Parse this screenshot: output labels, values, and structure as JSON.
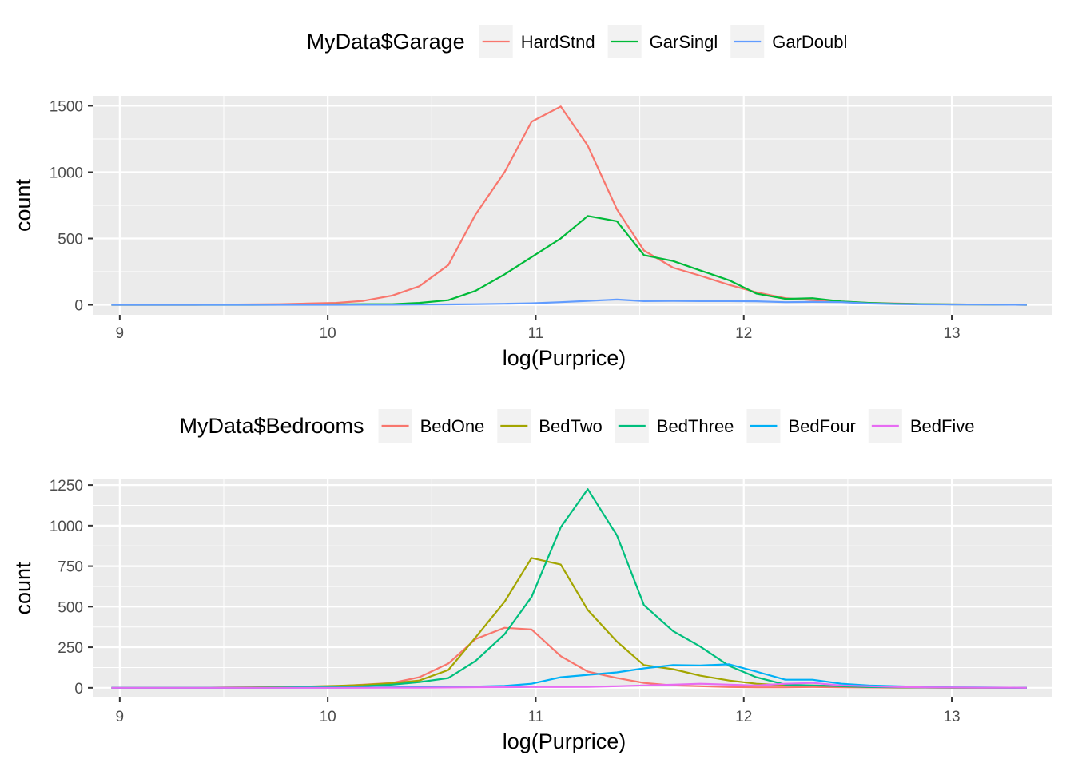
{
  "chart_data": [
    {
      "type": "line",
      "title": "",
      "xlabel": "log(Purprice)",
      "ylabel": "count",
      "xlim": [
        8.87,
        13.48
      ],
      "ylim": [
        -75,
        1575
      ],
      "xticks": [
        9,
        10,
        11,
        12,
        13
      ],
      "yticks": [
        0,
        500,
        1000,
        1500
      ],
      "grid": true,
      "legend": {
        "title": "MyData$Garage",
        "placement": "top"
      },
      "x": [
        8.96,
        9.09,
        9.23,
        9.36,
        9.5,
        9.63,
        9.77,
        9.9,
        10.04,
        10.17,
        10.31,
        10.44,
        10.58,
        10.71,
        10.85,
        10.98,
        11.12,
        11.25,
        11.39,
        11.52,
        11.66,
        11.79,
        11.93,
        12.06,
        12.2,
        12.33,
        12.47,
        12.6,
        12.74,
        12.87,
        13.01,
        13.14,
        13.28,
        13.36
      ],
      "series": [
        {
          "name": "HardStnd",
          "color": "#F8766D",
          "values": [
            0,
            0,
            0,
            0,
            2,
            3,
            5,
            10,
            15,
            30,
            70,
            140,
            300,
            680,
            1000,
            1380,
            1495,
            1200,
            720,
            410,
            280,
            220,
            150,
            95,
            50,
            35,
            25,
            15,
            10,
            5,
            3,
            2,
            1,
            0
          ]
        },
        {
          "name": "GarSingl",
          "color": "#00BA38",
          "values": [
            0,
            0,
            0,
            0,
            0,
            0,
            1,
            2,
            3,
            5,
            5,
            15,
            35,
            105,
            230,
            360,
            500,
            670,
            630,
            375,
            330,
            260,
            185,
            85,
            45,
            50,
            25,
            15,
            8,
            5,
            3,
            2,
            1,
            0
          ]
        },
        {
          "name": "GarDoubl",
          "color": "#619CFF",
          "values": [
            0,
            0,
            0,
            0,
            0,
            0,
            0,
            0,
            0,
            1,
            1,
            2,
            3,
            5,
            8,
            12,
            20,
            30,
            40,
            28,
            30,
            28,
            28,
            27,
            20,
            22,
            20,
            10,
            5,
            3,
            2,
            2,
            1,
            0
          ]
        }
      ]
    },
    {
      "type": "line",
      "title": "",
      "xlabel": "log(Purprice)",
      "ylabel": "count",
      "xlim": [
        8.87,
        13.48
      ],
      "ylim": [
        -60,
        1285
      ],
      "xticks": [
        9,
        10,
        11,
        12,
        13
      ],
      "yticks": [
        0,
        250,
        500,
        750,
        1000,
        1250
      ],
      "grid": true,
      "legend": {
        "title": "MyData$Bedrooms",
        "placement": "top"
      },
      "x": [
        8.96,
        9.09,
        9.23,
        9.36,
        9.5,
        9.63,
        9.77,
        9.9,
        10.04,
        10.17,
        10.31,
        10.44,
        10.58,
        10.71,
        10.85,
        10.98,
        11.12,
        11.25,
        11.39,
        11.52,
        11.66,
        11.79,
        11.93,
        12.06,
        12.2,
        12.33,
        12.47,
        12.6,
        12.74,
        12.87,
        13.01,
        13.14,
        13.28,
        13.36
      ],
      "series": [
        {
          "name": "BedOne",
          "color": "#F8766D",
          "values": [
            0,
            0,
            0,
            0,
            2,
            3,
            5,
            8,
            10,
            20,
            30,
            65,
            150,
            300,
            370,
            360,
            195,
            100,
            60,
            30,
            15,
            10,
            5,
            3,
            3,
            5,
            3,
            2,
            1,
            1,
            0,
            0,
            0,
            0
          ]
        },
        {
          "name": "BedTwo",
          "color": "#A3A500",
          "values": [
            0,
            0,
            0,
            0,
            1,
            2,
            4,
            8,
            12,
            18,
            28,
            45,
            110,
            310,
            530,
            800,
            760,
            480,
            285,
            140,
            115,
            75,
            45,
            25,
            15,
            15,
            10,
            5,
            3,
            2,
            1,
            1,
            0,
            0
          ]
        },
        {
          "name": "BedThree",
          "color": "#00BF7D",
          "values": [
            0,
            0,
            0,
            0,
            0,
            1,
            2,
            4,
            6,
            10,
            20,
            35,
            60,
            165,
            330,
            560,
            990,
            1225,
            940,
            510,
            350,
            255,
            135,
            65,
            20,
            15,
            10,
            5,
            3,
            2,
            1,
            1,
            0,
            0
          ]
        },
        {
          "name": "BedFour",
          "color": "#00B0F6",
          "values": [
            0,
            0,
            0,
            0,
            0,
            0,
            0,
            1,
            1,
            2,
            3,
            5,
            6,
            8,
            12,
            25,
            65,
            80,
            95,
            120,
            140,
            138,
            145,
            100,
            50,
            50,
            25,
            15,
            10,
            5,
            3,
            2,
            1,
            0
          ]
        },
        {
          "name": "BedFive",
          "color": "#E76BF3",
          "values": [
            0,
            0,
            0,
            0,
            0,
            0,
            0,
            0,
            0,
            0,
            1,
            1,
            2,
            3,
            4,
            5,
            5,
            6,
            10,
            15,
            20,
            25,
            20,
            15,
            25,
            30,
            15,
            10,
            5,
            3,
            2,
            1,
            1,
            0
          ]
        }
      ]
    }
  ]
}
